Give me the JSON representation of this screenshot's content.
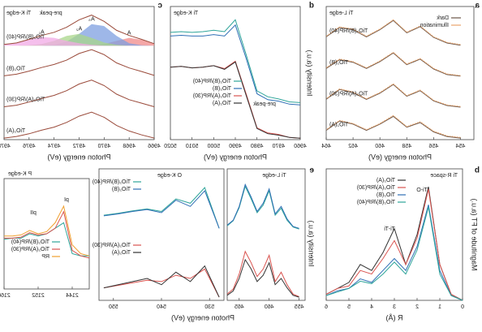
{
  "chart_data": [
    {
      "type": "line",
      "panel_label": "a",
      "title": "Ti L-edge",
      "xlabel": "Photon energy (eV)",
      "xlim": [
        453,
        464
      ],
      "xticks": [
        454,
        456,
        458,
        460,
        462,
        464
      ],
      "ylim": [
        0,
        4.3
      ],
      "x": [
        454,
        455,
        456,
        457,
        458,
        459,
        460,
        461,
        462,
        463,
        464
      ],
      "legend": [
        {
          "name": "Dark",
          "color": "#6b5548"
        },
        {
          "name": "Illumination",
          "color": "#e8a36a"
        }
      ],
      "series": [
        {
          "name": "TiO₂(A)",
          "dark": [
            0.05,
            0.1,
            0.25,
            0.55,
            0.4,
            0.75,
            0.5,
            0.3,
            0.5,
            0.6,
            0.3
          ],
          "illumination": [
            0.07,
            0.12,
            0.27,
            0.58,
            0.42,
            0.78,
            0.52,
            0.32,
            0.52,
            0.62,
            0.32
          ]
        },
        {
          "name": "TiO₂(A)/RP(30)",
          "dark": [
            1.05,
            1.1,
            1.25,
            1.58,
            1.4,
            1.78,
            1.5,
            1.3,
            1.52,
            1.62,
            1.3
          ],
          "illumination": [
            1.07,
            1.12,
            1.27,
            1.6,
            1.42,
            1.8,
            1.52,
            1.32,
            1.54,
            1.64,
            1.32
          ]
        },
        {
          "name": "TiO₂(B)",
          "dark": [
            2.05,
            2.1,
            2.28,
            2.6,
            2.42,
            2.8,
            2.52,
            2.3,
            2.5,
            2.58,
            2.3
          ],
          "illumination": [
            2.07,
            2.12,
            2.3,
            2.62,
            2.44,
            2.82,
            2.54,
            2.32,
            2.52,
            2.6,
            2.32
          ]
        },
        {
          "name": "TiO₂(B)/RP(40)",
          "dark": [
            3.05,
            3.12,
            3.3,
            3.65,
            3.45,
            3.85,
            3.55,
            3.32,
            3.55,
            3.62,
            3.32
          ],
          "illumination": [
            3.07,
            3.14,
            3.32,
            3.67,
            3.47,
            3.87,
            3.57,
            3.34,
            3.57,
            3.64,
            3.34
          ]
        }
      ]
    },
    {
      "type": "line",
      "panel_label": "d",
      "title": "Ti K-edge",
      "xlabel": "Photon energy (eV)",
      "ylabel": "Intensity (a.u.)",
      "annotations": [
        "pre-peak"
      ],
      "xlim": [
        4960,
        5020
      ],
      "xticks": [
        4960,
        4970,
        4980,
        4990,
        5000,
        5010,
        5020
      ],
      "ylim": [
        0,
        1.8
      ],
      "x": [
        4960,
        4965,
        4970,
        4975,
        4980,
        4985,
        4990,
        4995,
        5000,
        5005,
        5010,
        5015,
        5020
      ],
      "series": [
        {
          "name": "TiO₂(B)/RP(40)",
          "color": "#2fa59a",
          "values": [
            0.5,
            0.51,
            0.55,
            0.58,
            0.66,
            1.15,
            1.62,
            1.46,
            1.48,
            1.46,
            1.45,
            1.46,
            1.45
          ]
        },
        {
          "name": "TiO₂(B)",
          "color": "#2f6fb5",
          "values": [
            0.47,
            0.48,
            0.52,
            0.54,
            0.62,
            1.1,
            1.55,
            1.4,
            1.42,
            1.4,
            1.4,
            1.41,
            1.4
          ]
        },
        {
          "name": "TiO₂(A)/RP(30)",
          "color": "#d9534f",
          "values": [
            0.02,
            0.03,
            0.07,
            0.09,
            0.16,
            0.62,
            1.06,
            0.96,
            1.0,
            0.98,
            0.97,
            0.99,
            0.98
          ]
        },
        {
          "name": "TiO₂(A)",
          "color": "#333333",
          "values": [
            0.02,
            0.03,
            0.06,
            0.08,
            0.15,
            0.6,
            1.05,
            0.95,
            1.0,
            0.98,
            0.97,
            0.99,
            0.98
          ]
        }
      ]
    },
    {
      "type": "line",
      "panel_label": "c",
      "title": "Ti K-edge",
      "xlabel": "Photon energy (eV)",
      "annotations": [
        "pre-peak"
      ],
      "xlim": [
        4966,
        4978
      ],
      "xticks": [
        4966,
        4968,
        4970,
        4972,
        4974,
        4976,
        4978
      ],
      "ylim": [
        0,
        3.4
      ],
      "x": [
        4966,
        4967,
        4968,
        4969,
        4970,
        4971,
        4972,
        4973,
        4974,
        4975,
        4976,
        4977,
        4978
      ],
      "peaks": [
        {
          "name": "A",
          "color": "#f08a8a",
          "values": [
            2.45,
            2.55,
            2.6,
            2.52,
            2.44,
            2.41,
            2.4,
            2.4,
            2.4,
            2.4,
            2.4,
            2.4,
            2.4
          ]
        },
        {
          "name": "A₃",
          "color": "#7d9fe0",
          "values": [
            2.4,
            2.41,
            2.46,
            2.65,
            2.9,
            2.95,
            2.7,
            2.5,
            2.42,
            2.4,
            2.4,
            2.4,
            2.4
          ]
        },
        {
          "name": "A₂",
          "color": "#a8d58a",
          "values": [
            2.4,
            2.4,
            2.4,
            2.42,
            2.48,
            2.6,
            2.7,
            2.65,
            2.52,
            2.44,
            2.41,
            2.4,
            2.4
          ]
        },
        {
          "name": "A₁",
          "color": "#f2a9e6",
          "values": [
            2.4,
            2.4,
            2.4,
            2.4,
            2.4,
            2.42,
            2.46,
            2.52,
            2.6,
            2.62,
            2.55,
            2.47,
            2.43
          ]
        }
      ],
      "series": [
        {
          "name": "TiO₂(B)/RP(40)",
          "color": "#9a4a3a",
          "values": [
            2.45,
            2.56,
            2.66,
            2.79,
            3.02,
            3.18,
            3.06,
            2.87,
            2.74,
            2.66,
            2.56,
            2.47,
            2.43
          ]
        },
        {
          "name": "TiO₂(B)",
          "color": "#9a4a3a",
          "values": [
            1.64,
            1.74,
            1.83,
            1.96,
            2.17,
            2.3,
            2.2,
            2.03,
            1.92,
            1.84,
            1.75,
            1.67,
            1.63
          ]
        },
        {
          "name": "TiO₂(A)/RP(30)",
          "color": "#9a4a3a",
          "values": [
            0.84,
            0.93,
            1.02,
            1.16,
            1.38,
            1.52,
            1.42,
            1.25,
            1.13,
            1.05,
            0.96,
            0.88,
            0.84
          ]
        },
        {
          "name": "TiO₂(A)",
          "color": "#9a4a3a",
          "values": [
            0.04,
            0.12,
            0.22,
            0.36,
            0.57,
            0.7,
            0.6,
            0.44,
            0.32,
            0.24,
            0.15,
            0.08,
            0.04
          ]
        }
      ]
    },
    {
      "type": "line",
      "panel_label": "b",
      "title": "Ti R-space",
      "xlabel": "R (Å)",
      "ylabel": "Magnitude of FT (a.u.)",
      "annotations": [
        "Ti-O",
        "Ti-Ti"
      ],
      "xlim": [
        0,
        6
      ],
      "xticks": [
        0,
        1,
        2,
        3,
        4,
        5,
        6
      ],
      "ylim": [
        0,
        1.1
      ],
      "x": [
        0,
        0.5,
        1,
        1.5,
        2,
        2.5,
        3,
        3.5,
        4,
        4.5,
        5,
        5.5,
        6
      ],
      "series": [
        {
          "name": "TiO₂(A)",
          "color": "#333333",
          "values": [
            0,
            0.05,
            0.3,
            0.95,
            0.55,
            0.3,
            0.6,
            0.4,
            0.25,
            0.3,
            0.15,
            0.1,
            0.05
          ]
        },
        {
          "name": "TiO₂(A)/RP(30)",
          "color": "#d9534f",
          "values": [
            0,
            0.05,
            0.3,
            0.93,
            0.52,
            0.3,
            0.5,
            0.35,
            0.22,
            0.25,
            0.12,
            0.1,
            0.05
          ]
        },
        {
          "name": "TiO₂(B)",
          "color": "#2f6fb5",
          "values": [
            0,
            0.04,
            0.25,
            0.8,
            0.45,
            0.25,
            0.35,
            0.25,
            0.15,
            0.18,
            0.1,
            0.08,
            0.04
          ]
        },
        {
          "name": "TiO₂(B)/RP(40)",
          "color": "#2fa59a",
          "values": [
            0,
            0.04,
            0.22,
            0.78,
            0.42,
            0.22,
            0.32,
            0.22,
            0.14,
            0.16,
            0.1,
            0.07,
            0.04
          ]
        }
      ]
    },
    {
      "type": "line",
      "panel_label": "e",
      "title": "Ti L-edge",
      "ylabel": "Intensity (a.u.)",
      "xlim": [
        454,
        467
      ],
      "xticks": [
        455,
        460,
        465
      ],
      "ylim": [
        0,
        2.1
      ],
      "x": [
        455,
        456,
        457,
        458,
        459,
        460,
        461,
        462,
        463,
        464,
        465,
        466,
        467
      ],
      "series": [
        {
          "name": "TiO₂(B)/RP(40)",
          "color": "#2fa59a",
          "values": [
            1.14,
            1.17,
            1.28,
            1.47,
            1.36,
            1.75,
            1.52,
            1.4,
            1.62,
            1.82,
            1.48,
            1.27,
            1.19
          ]
        },
        {
          "name": "TiO₂(B)",
          "color": "#2f6fb5",
          "values": [
            1.15,
            1.18,
            1.3,
            1.5,
            1.38,
            1.78,
            1.55,
            1.42,
            1.65,
            1.85,
            1.5,
            1.28,
            1.2
          ]
        },
        {
          "name": "TiO₂(A)/RP(30)",
          "color": "#d9534f",
          "values": [
            0.06,
            0.1,
            0.25,
            0.45,
            0.3,
            0.72,
            0.5,
            0.38,
            0.6,
            0.78,
            0.42,
            0.18,
            0.1
          ]
        },
        {
          "name": "TiO₂(A)",
          "color": "#333333",
          "values": [
            0.05,
            0.08,
            0.2,
            0.35,
            0.25,
            0.6,
            0.4,
            0.3,
            0.5,
            0.65,
            0.35,
            0.15,
            0.08
          ]
        }
      ]
    },
    {
      "type": "line",
      "title": "O K-edge",
      "xlabel": "Photon energy (eV)",
      "xlim": [
        527,
        553
      ],
      "xticks": [
        530,
        540,
        550
      ],
      "ylim": [
        0,
        2.1
      ],
      "x": [
        528,
        531,
        534,
        537,
        540,
        543,
        546,
        549,
        552
      ],
      "series": [
        {
          "name": "TiO₂(B)/RP(40)",
          "color": "#2fa59a",
          "values": [
            1.15,
            1.8,
            1.55,
            1.62,
            1.42,
            1.46,
            1.43,
            1.39,
            1.36
          ]
        },
        {
          "name": "TiO₂(B)",
          "color": "#2f6fb5",
          "values": [
            1.15,
            1.75,
            1.5,
            1.6,
            1.4,
            1.45,
            1.42,
            1.38,
            1.35
          ]
        },
        {
          "name": "TiO₂(A)/RP(30)",
          "color": "#d9534f",
          "values": [
            0.05,
            0.5,
            0.35,
            0.4,
            0.3,
            0.32,
            0.28,
            0.24,
            0.2
          ]
        },
        {
          "name": "TiO₂(A)",
          "color": "#333333",
          "values": [
            0.05,
            0.55,
            0.3,
            0.45,
            0.25,
            0.35,
            0.3,
            0.25,
            0.2
          ]
        }
      ]
    },
    {
      "type": "line",
      "title": "P K-edge",
      "annotations": [
        "pI",
        "pII"
      ],
      "xlim": [
        2140,
        2160
      ],
      "xticks": [
        2144,
        2152,
        2160
      ],
      "ylim": [
        0,
        1
      ],
      "x": [
        2140,
        2142,
        2144,
        2146,
        2148,
        2150,
        2152,
        2154,
        2156,
        2158,
        2160
      ],
      "series": [
        {
          "name": "TiO₂(B)/RP(40)",
          "color": "#2fa59a",
          "values": [
            0.3,
            0.3,
            0.32,
            0.6,
            0.55,
            0.5,
            0.48,
            0.5,
            0.46,
            0.46,
            0.45
          ]
        },
        {
          "name": "TiO₂(A)/RP(30)",
          "color": "#d9534f",
          "values": [
            0.28,
            0.3,
            0.35,
            0.7,
            0.55,
            0.5,
            0.49,
            0.51,
            0.47,
            0.46,
            0.46
          ]
        },
        {
          "name": "RP",
          "color": "#f0a030",
          "values": [
            0.3,
            0.32,
            0.4,
            0.75,
            0.6,
            0.52,
            0.5,
            0.53,
            0.49,
            0.48,
            0.48
          ]
        }
      ]
    }
  ]
}
